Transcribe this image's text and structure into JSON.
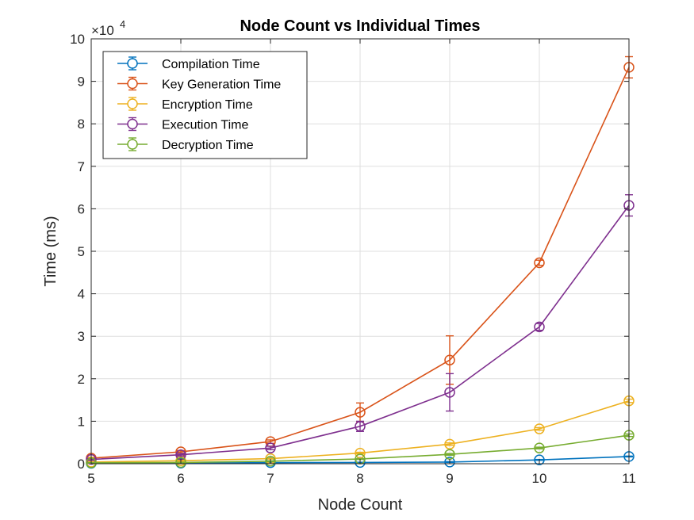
{
  "chart_data": {
    "type": "line",
    "title": "Node Count vs Individual Times",
    "xlabel": "Node Count",
    "ylabel": "Time (ms)",
    "y_exponent_base": "×10",
    "y_exponent_power": "4",
    "xlim": [
      5,
      11
    ],
    "ylim": [
      0,
      100000
    ],
    "x_ticks": [
      "5",
      "6",
      "7",
      "8",
      "9",
      "10",
      "11"
    ],
    "y_ticks": [
      "0",
      "1",
      "2",
      "3",
      "4",
      "5",
      "6",
      "7",
      "8",
      "9",
      "10"
    ],
    "grid": true,
    "legend_position": "top-left",
    "x": [
      5,
      6,
      7,
      8,
      9,
      10,
      11
    ],
    "series": [
      {
        "name": "Compilation Time",
        "color": "#0072BD",
        "values": [
          100,
          150,
          250,
          300,
          400,
          900,
          1700
        ],
        "errors": [
          50,
          50,
          50,
          50,
          100,
          100,
          100
        ]
      },
      {
        "name": "Key Generation Time",
        "color": "#D95319",
        "values": [
          1300,
          2800,
          5200,
          12100,
          24400,
          47300,
          93300
        ],
        "errors": [
          200,
          300,
          400,
          2200,
          5700,
          600,
          2500
        ]
      },
      {
        "name": "Encryption Time",
        "color": "#EDB120",
        "values": [
          400,
          700,
          1200,
          2500,
          4600,
          8200,
          14800
        ],
        "errors": [
          100,
          100,
          100,
          200,
          300,
          300,
          400
        ]
      },
      {
        "name": "Execution Time",
        "color": "#7E2F8E",
        "values": [
          1000,
          2100,
          3700,
          8800,
          16800,
          32200,
          60800
        ],
        "errors": [
          200,
          300,
          400,
          1200,
          4400,
          800,
          2500
        ]
      },
      {
        "name": "Decryption Time",
        "color": "#77AC30",
        "values": [
          200,
          300,
          600,
          1100,
          2200,
          3700,
          6700
        ],
        "errors": [
          50,
          50,
          100,
          100,
          200,
          200,
          300
        ]
      }
    ]
  }
}
